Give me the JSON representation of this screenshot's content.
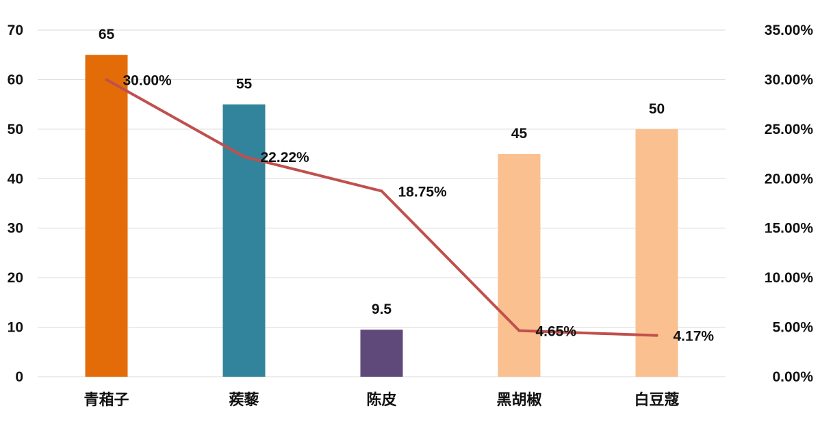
{
  "chart_data": {
    "type": "bar",
    "categories": [
      "青葙子",
      "蒺藜",
      "陈皮",
      "黑胡椒",
      "白豆蔻"
    ],
    "series": [
      {
        "type": "bar",
        "axis": "left",
        "values": [
          65,
          55,
          9.5,
          45,
          50
        ],
        "labels": [
          "65",
          "55",
          "9.5",
          "45",
          "50"
        ],
        "colors": [
          "#e36c09",
          "#31849b",
          "#5f497a",
          "#fac090",
          "#fac090"
        ]
      },
      {
        "type": "line",
        "axis": "right",
        "values": [
          30.0,
          22.22,
          18.75,
          4.65,
          4.17
        ],
        "labels": [
          "30.00%",
          "22.22%",
          "18.75%",
          "4.65%",
          "4.17%"
        ],
        "color": "#c0504d"
      }
    ],
    "y_left": {
      "ylim": [
        0,
        70
      ],
      "ticks": [
        "0",
        "10",
        "20",
        "30",
        "40",
        "50",
        "60",
        "70"
      ]
    },
    "y_right": {
      "ylim": [
        0,
        35
      ],
      "ticks": [
        "0.00%",
        "5.00%",
        "10.00%",
        "15.00%",
        "20.00%",
        "25.00%",
        "30.00%",
        "35.00%"
      ]
    },
    "grid": true,
    "legend": "none"
  }
}
